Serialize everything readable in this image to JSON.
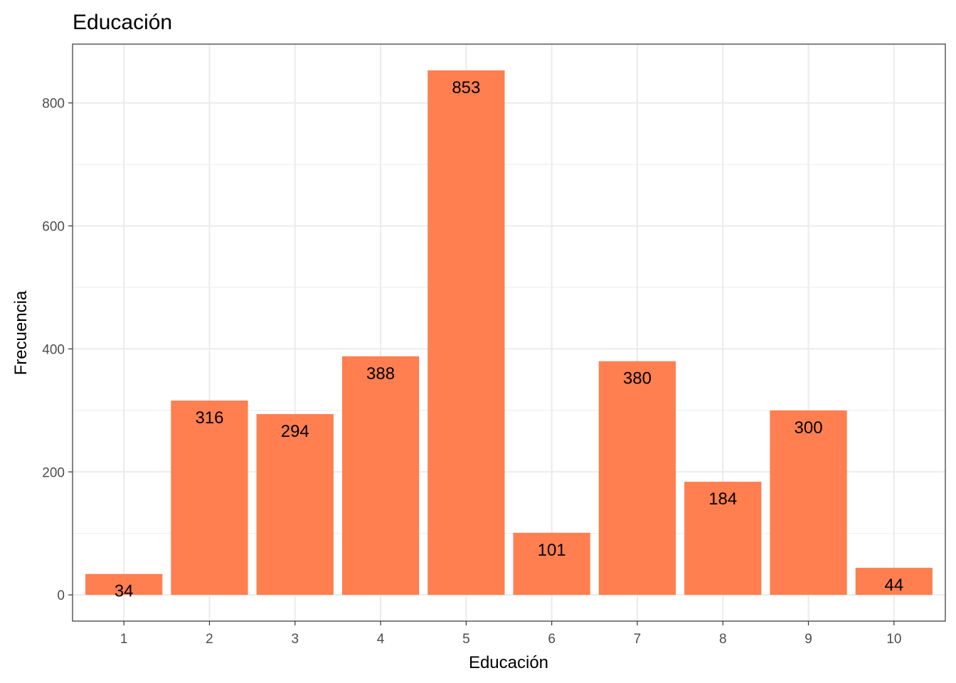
{
  "chart_data": {
    "type": "bar",
    "title": "Educación",
    "xlabel": "Educación",
    "ylabel": "Frecuencia",
    "categories": [
      "1",
      "2",
      "3",
      "4",
      "5",
      "6",
      "7",
      "8",
      "9",
      "10"
    ],
    "values": [
      34,
      316,
      294,
      388,
      853,
      101,
      380,
      184,
      300,
      44
    ],
    "data_labels": [
      "34",
      "316",
      "294",
      "388",
      "853",
      "101",
      "380",
      "184",
      "300",
      "44"
    ],
    "ylim": [
      -42.65,
      895.65
    ],
    "yticks": [
      0,
      200,
      400,
      600,
      800
    ],
    "ytick_labels": [
      "0",
      "200",
      "400",
      "600",
      "800"
    ],
    "grid": true,
    "legend": "none",
    "bar_color": "#FF7F50",
    "grid_color": "#EBEBEB",
    "panel_border_color": "#333333"
  }
}
